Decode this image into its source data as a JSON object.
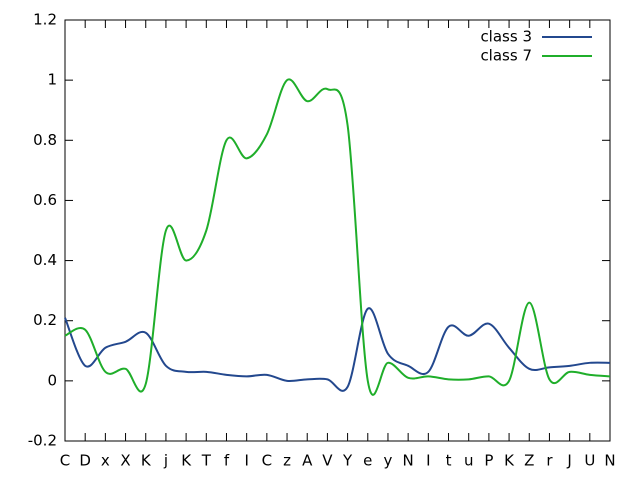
{
  "chart_data": {
    "type": "line",
    "categories": [
      "C",
      "D",
      "x",
      "X",
      "K",
      "j",
      "K",
      "T",
      "f",
      "I",
      "C",
      "z",
      "A",
      "V",
      "Y",
      "e",
      "y",
      "N",
      "I",
      "t",
      "u",
      "P",
      "K",
      "Z",
      "r",
      "J",
      "U",
      "N"
    ],
    "series": [
      {
        "name": "class 3",
        "color": "#23488e",
        "values": [
          0.21,
          0.05,
          0.11,
          0.13,
          0.16,
          0.05,
          0.03,
          0.03,
          0.02,
          0.015,
          0.02,
          0.0,
          0.005,
          0.005,
          -0.02,
          0.24,
          0.09,
          0.05,
          0.03,
          0.18,
          0.15,
          0.19,
          0.11,
          0.04,
          0.045,
          0.05,
          0.06,
          0.06
        ]
      },
      {
        "name": "class 7",
        "color": "#1fae2a",
        "values": [
          0.15,
          0.17,
          0.03,
          0.04,
          -0.01,
          0.5,
          0.4,
          0.5,
          0.8,
          0.74,
          0.82,
          1.0,
          0.93,
          0.97,
          0.85,
          0.0,
          0.06,
          0.01,
          0.015,
          0.005,
          0.005,
          0.015,
          0.0,
          0.26,
          0.005,
          0.03,
          0.02,
          0.015
        ]
      }
    ],
    "ylim": [
      -0.2,
      1.2
    ],
    "yticks": [
      -0.2,
      0,
      0.2,
      0.4,
      0.6,
      0.8,
      1,
      1.2
    ],
    "legend": "upper right",
    "grid": false
  }
}
